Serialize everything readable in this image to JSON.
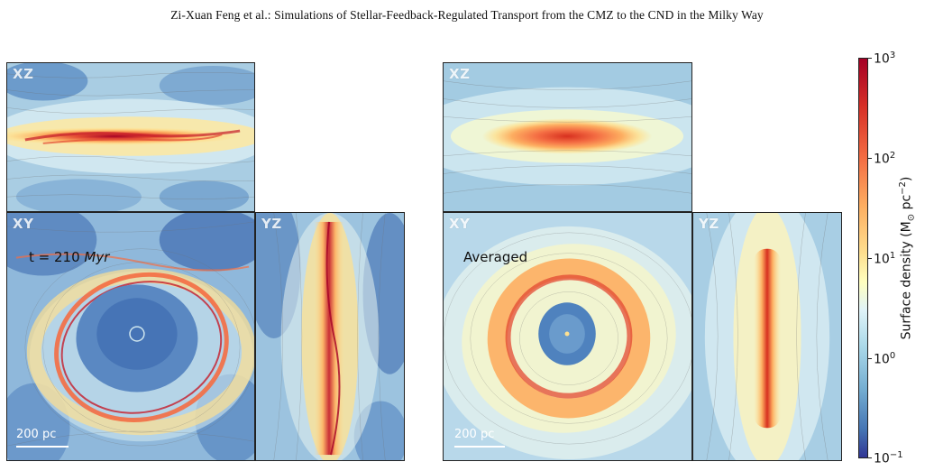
{
  "header": {
    "text": "Zi-Xuan Feng  et al.: Simulations of Stellar-Feedback-Regulated Transport from the CMZ to the CND in the Milky Way"
  },
  "left_figure": {
    "panels": {
      "xz": "XZ",
      "xy": "XY",
      "yz": "YZ"
    },
    "annotation_prefix": "t = 210 ",
    "annotation_unit": "Myr",
    "scalebar": "200 pc"
  },
  "right_figure": {
    "panels": {
      "xz": "XZ",
      "xy": "XY",
      "yz": "YZ"
    },
    "annotation": "Averaged",
    "scalebar": "200 pc"
  },
  "colorbar": {
    "label_main": "Surface density (M",
    "label_sun": "⊙",
    "label_unit": " pc",
    "label_exp": "−2",
    "label_close": ")",
    "scale": "log",
    "colormap": "RdYlBu_r",
    "range": [
      0.1,
      1000
    ],
    "ticks": [
      {
        "base": "10",
        "exp": "3"
      },
      {
        "base": "10",
        "exp": "2"
      },
      {
        "base": "10",
        "exp": "1"
      },
      {
        "base": "10",
        "exp": "0"
      },
      {
        "base": "10",
        "exp": "−1"
      }
    ]
  },
  "colors": {
    "low": "#313695",
    "mid": "#ffffbf",
    "high": "#a50026"
  }
}
